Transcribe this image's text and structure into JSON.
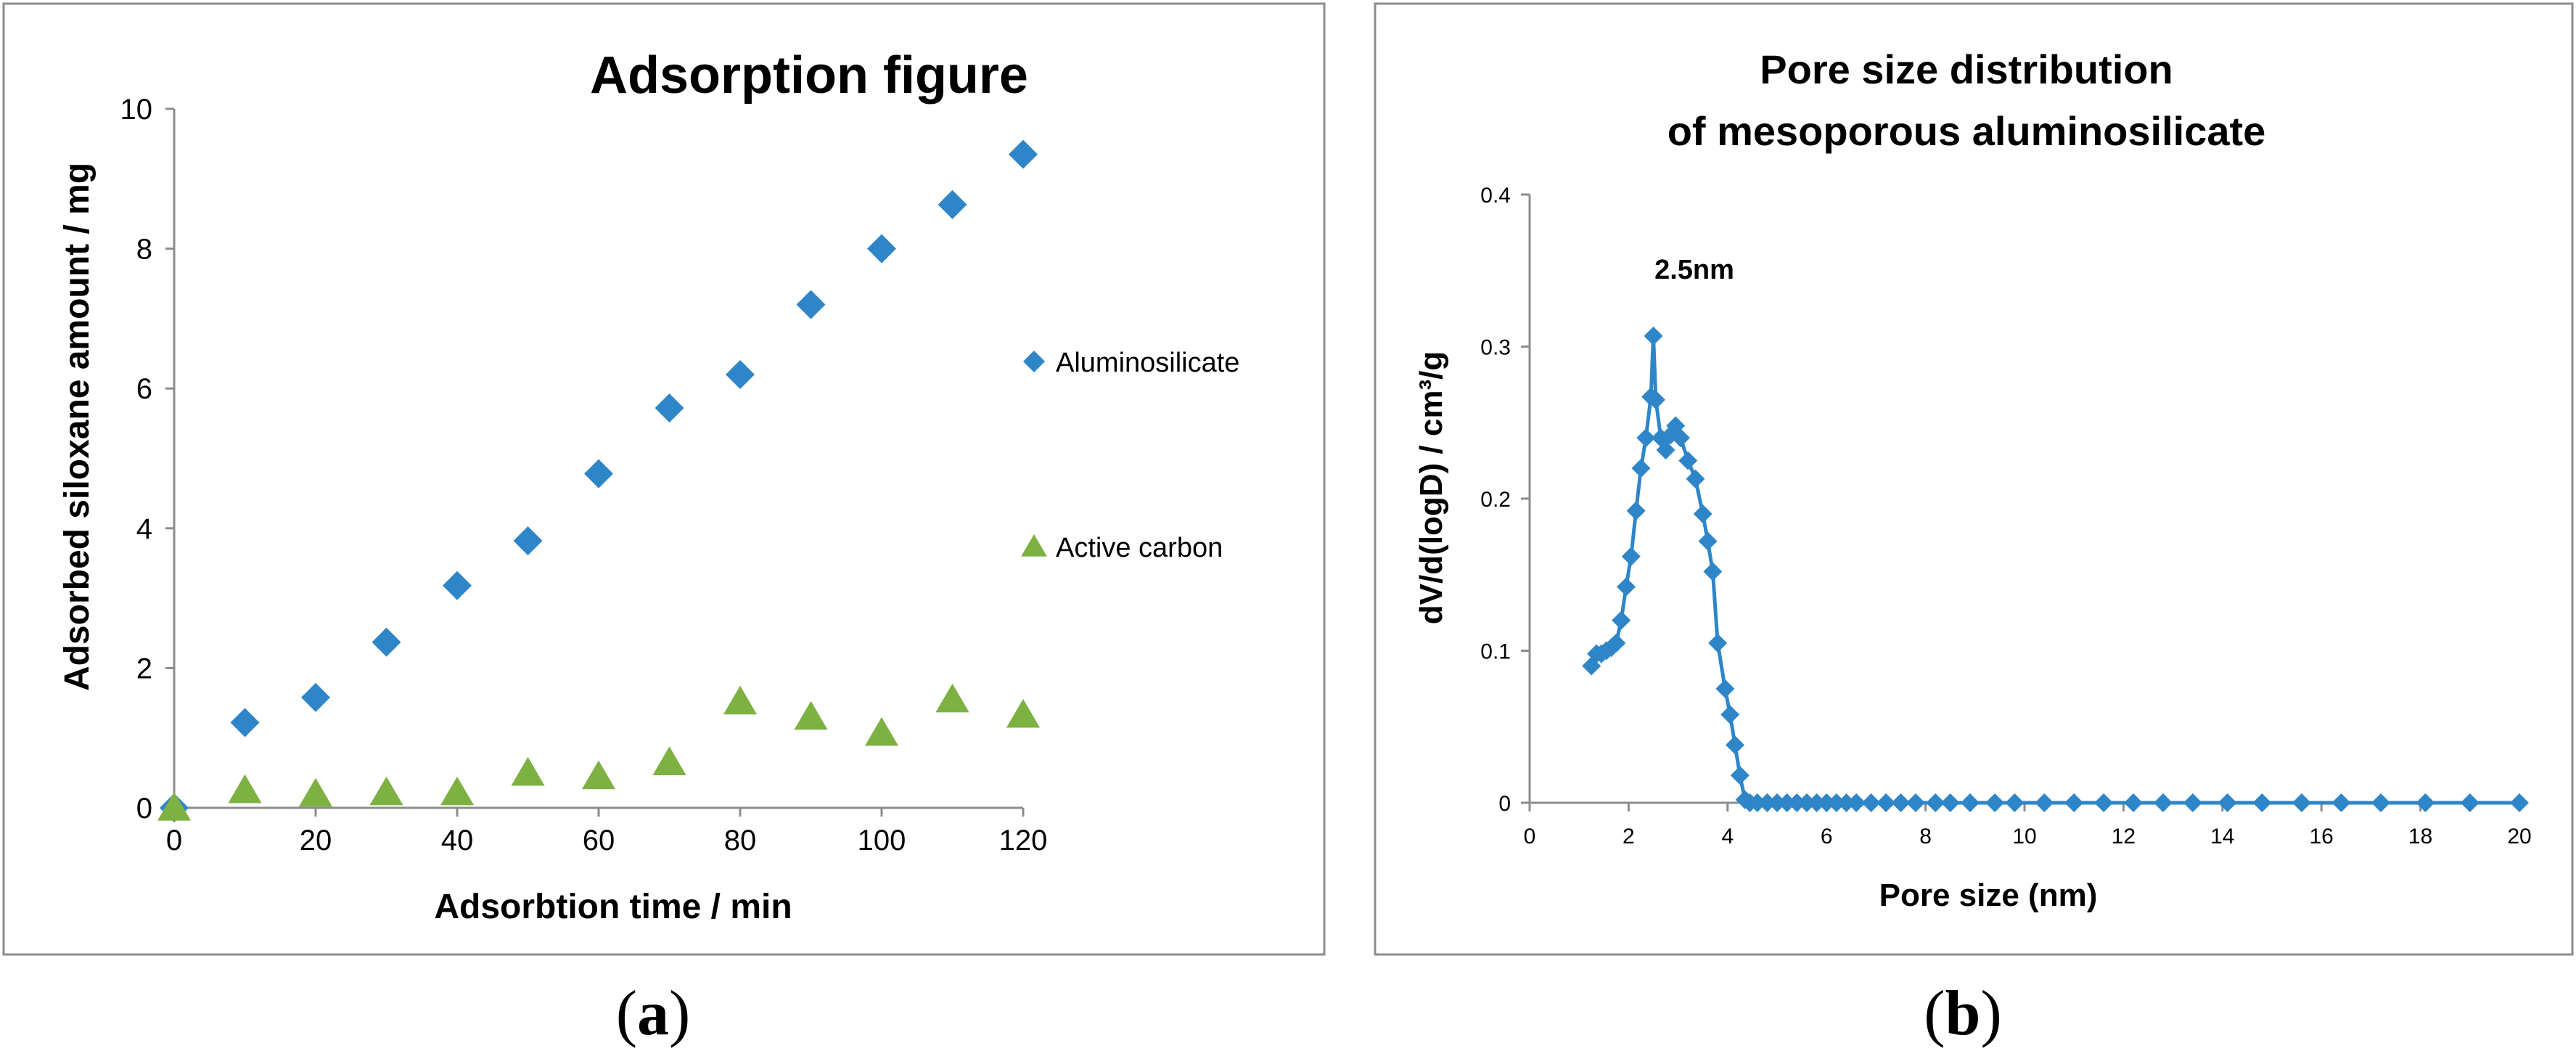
{
  "chart_data": [
    {
      "panel": "a",
      "type": "scatter",
      "title": "Adsorption figure",
      "xlabel": "Adsorbtion time / min",
      "ylabel": "Adsorbed siloxane amount / mg",
      "xlim": [
        0,
        120
      ],
      "ylim": [
        0,
        10
      ],
      "xticks": [
        0,
        20,
        40,
        60,
        80,
        100,
        120
      ],
      "yticks": [
        0,
        2,
        4,
        6,
        8,
        10
      ],
      "grid": false,
      "legend_position": "right",
      "series": [
        {
          "name": "Aluminosilicate",
          "marker": "diamond",
          "color": "#2E86C8",
          "x": [
            0,
            10,
            20,
            30,
            40,
            50,
            60,
            70,
            80,
            90,
            100,
            110,
            120
          ],
          "y": [
            0,
            1.22,
            1.58,
            2.37,
            3.18,
            3.82,
            4.78,
            5.72,
            6.2,
            7.2,
            8.0,
            8.63,
            9.35
          ]
        },
        {
          "name": "Active carbon",
          "marker": "triangle",
          "color": "#7DB243",
          "x": [
            0,
            10,
            20,
            30,
            40,
            50,
            60,
            70,
            80,
            90,
            100,
            110,
            120
          ],
          "y": [
            0,
            0.25,
            0.2,
            0.22,
            0.22,
            0.5,
            0.45,
            0.65,
            1.52,
            1.3,
            1.07,
            1.55,
            1.33
          ]
        }
      ]
    },
    {
      "panel": "b",
      "type": "line",
      "title": "Pore size distribution",
      "title_line2": "of mesoporous aluminosilicate",
      "xlabel": "Pore size (nm)",
      "ylabel": "dV/d(logD) / cm³/g",
      "xlim": [
        0,
        20
      ],
      "ylim": [
        0,
        0.4
      ],
      "xticks": [
        0,
        2,
        4,
        6,
        8,
        10,
        12,
        14,
        16,
        18,
        20
      ],
      "yticks": [
        0,
        0.1,
        0.2,
        0.3,
        0.4
      ],
      "ytick_labels": [
        "0",
        "0.1",
        "0.2",
        "0.3",
        "0.4"
      ],
      "grid": false,
      "annotation": "2.5nm",
      "series": [
        {
          "name": "Pore size distribution",
          "marker": "diamond",
          "color": "#2E86C8",
          "x": [
            1.25,
            1.35,
            1.45,
            1.55,
            1.65,
            1.75,
            1.85,
            1.95,
            2.05,
            2.15,
            2.25,
            2.35,
            2.45,
            2.5,
            2.55,
            2.65,
            2.75,
            2.85,
            2.95,
            3.05,
            3.2,
            3.35,
            3.5,
            3.6,
            3.7,
            3.8,
            3.95,
            4.05,
            4.15,
            4.25,
            4.35,
            4.45,
            4.6,
            4.8,
            5.0,
            5.2,
            5.4,
            5.6,
            5.8,
            6.0,
            6.2,
            6.4,
            6.6,
            6.9,
            7.2,
            7.5,
            7.8,
            8.2,
            8.5,
            8.9,
            9.4,
            9.8,
            10.4,
            11.0,
            11.6,
            12.2,
            12.8,
            13.4,
            14.1,
            14.8,
            15.6,
            16.4,
            17.2,
            18.1,
            19.0,
            20.0
          ],
          "y": [
            0.09,
            0.098,
            0.098,
            0.1,
            0.102,
            0.105,
            0.12,
            0.142,
            0.162,
            0.192,
            0.22,
            0.24,
            0.267,
            0.307,
            0.265,
            0.24,
            0.232,
            0.242,
            0.248,
            0.24,
            0.225,
            0.213,
            0.19,
            0.172,
            0.152,
            0.105,
            0.075,
            0.058,
            0.038,
            0.018,
            0.002,
            0,
            0,
            0,
            0,
            0,
            0,
            0,
            0,
            0,
            0,
            0,
            0,
            0,
            0,
            0,
            0,
            0,
            0,
            0,
            0,
            0,
            0,
            0,
            0,
            0,
            0,
            0,
            0,
            0,
            0,
            0,
            0,
            0,
            0,
            0
          ]
        }
      ]
    }
  ],
  "panel_labels": {
    "a": {
      "open": "(",
      "letter": "a",
      "close": ")"
    },
    "b": {
      "open": "(",
      "letter": "b",
      "close": ")"
    }
  }
}
